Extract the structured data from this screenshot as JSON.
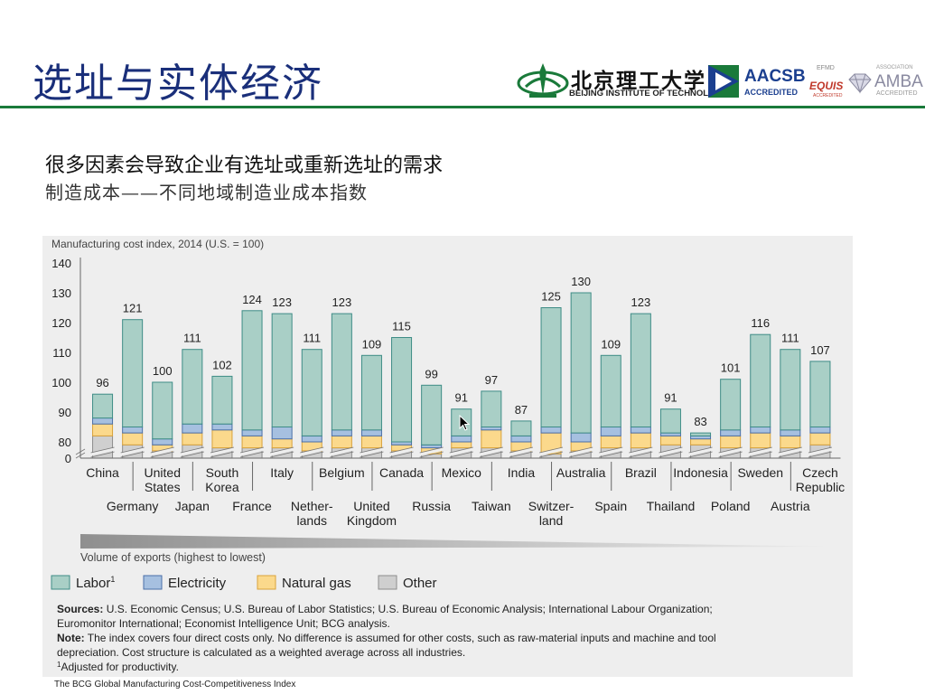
{
  "slide": {
    "title": "选址与实体经济",
    "heading": "很多因素会导致企业有选址或重新选址的需求",
    "subheading": "制造成本——不同地域制造业成本指数",
    "footer": "The BCG Global Manufacturing Cost-Competitiveness Index"
  },
  "logos": {
    "university_cn": "北京理工大学",
    "university_en": "BEIJING INSTITUTE OF TECHNOLOGY",
    "aacsb": "AACSB",
    "aacsb_sub": "ACCREDITED",
    "efmd": "EFMD",
    "equis": "EQUIS",
    "equis_sub": "ACCREDITED",
    "amba_assoc": "ASSOCIATION",
    "amba": "AMBA",
    "amba_sub": "ACCREDITED",
    "colors": {
      "bit_green": "#1a7a3a",
      "aacsb_blue": "#1b3f8f",
      "equis_red": "#c0392b"
    }
  },
  "chart_data": {
    "type": "bar",
    "stacked": true,
    "title": "Manufacturing cost index, 2014 (U.S. = 100)",
    "ylim": [
      0,
      140
    ],
    "yticks": [
      0,
      80,
      90,
      100,
      110,
      120,
      130,
      140
    ],
    "axis_break": true,
    "categories": [
      {
        "label": "China",
        "total": 96,
        "labor": 8,
        "electricity": 2,
        "gas": 4,
        "other": 82
      },
      {
        "label": "Germany",
        "total": 121,
        "labor": 36,
        "electricity": 2,
        "gas": 4,
        "other": 79
      },
      {
        "label": "United States",
        "total": 100,
        "labor": 19,
        "electricity": 2,
        "gas": 2,
        "other": 77
      },
      {
        "label": "Japan",
        "total": 111,
        "labor": 25,
        "electricity": 3,
        "gas": 4,
        "other": 79
      },
      {
        "label": "South Korea",
        "total": 102,
        "labor": 16,
        "electricity": 2,
        "gas": 6,
        "other": 78
      },
      {
        "label": "France",
        "total": 124,
        "labor": 40,
        "electricity": 2,
        "gas": 4,
        "other": 78
      },
      {
        "label": "Italy",
        "total": 123,
        "labor": 38,
        "electricity": 4,
        "gas": 3,
        "other": 78
      },
      {
        "label": "Nether-lands",
        "total": 111,
        "labor": 29,
        "electricity": 2,
        "gas": 3,
        "other": 77
      },
      {
        "label": "Belgium",
        "total": 123,
        "labor": 39,
        "electricity": 2,
        "gas": 4,
        "other": 78
      },
      {
        "label": "United Kingdom",
        "total": 109,
        "labor": 25,
        "electricity": 2,
        "gas": 4,
        "other": 78
      },
      {
        "label": "Canada",
        "total": 115,
        "labor": 35,
        "electricity": 1,
        "gas": 2,
        "other": 77
      },
      {
        "label": "Russia",
        "total": 99,
        "labor": 20,
        "electricity": 1,
        "gas": 2,
        "other": 76
      },
      {
        "label": "Mexico",
        "total": 91,
        "labor": 9,
        "electricity": 2,
        "gas": 2,
        "other": 78
      },
      {
        "label": "Taiwan",
        "total": 97,
        "labor": 12,
        "electricity": 1,
        "gas": 6,
        "other": 78
      },
      {
        "label": "India",
        "total": 87,
        "labor": 5,
        "electricity": 2,
        "gas": 3,
        "other": 77
      },
      {
        "label": "Switzer-land",
        "total": 125,
        "labor": 40,
        "electricity": 2,
        "gas": 7,
        "other": 76
      },
      {
        "label": "Australia",
        "total": 130,
        "labor": 47,
        "electricity": 3,
        "gas": 3,
        "other": 77
      },
      {
        "label": "Spain",
        "total": 109,
        "labor": 24,
        "electricity": 3,
        "gas": 4,
        "other": 78
      },
      {
        "label": "Brazil",
        "total": 123,
        "labor": 38,
        "electricity": 2,
        "gas": 5,
        "other": 78
      },
      {
        "label": "Thailand",
        "total": 91,
        "labor": 8,
        "electricity": 1,
        "gas": 3,
        "other": 79
      },
      {
        "label": "Indonesia",
        "total": 83,
        "labor": 1,
        "electricity": 1,
        "gas": 2,
        "other": 79
      },
      {
        "label": "Poland",
        "total": 101,
        "labor": 17,
        "electricity": 2,
        "gas": 4,
        "other": 78
      },
      {
        "label": "Sweden",
        "total": 116,
        "labor": 31,
        "electricity": 2,
        "gas": 5,
        "other": 78
      },
      {
        "label": "Austria",
        "total": 111,
        "labor": 27,
        "electricity": 2,
        "gas": 4,
        "other": 78
      },
      {
        "label": "Czech Republic",
        "total": 107,
        "labor": 22,
        "electricity": 2,
        "gas": 4,
        "other": 79
      }
    ],
    "xaxis_caption": "Volume of exports (highest to lowest)",
    "legend": [
      {
        "key": "labor",
        "label": "Labor",
        "sup": "1",
        "color": "#a9cfc6",
        "stroke": "#3e8c86"
      },
      {
        "key": "electricity",
        "label": "Electricity",
        "color": "#a6c0e0",
        "stroke": "#4b6fa8"
      },
      {
        "key": "gas",
        "label": "Natural gas",
        "color": "#fbd98c",
        "stroke": "#d9a23a"
      },
      {
        "key": "other",
        "label": "Other",
        "color": "#cfcfcf",
        "stroke": "#8c8c8c"
      }
    ],
    "notes": [
      {
        "bold": "Sources:",
        "text": " U.S. Economic Census; U.S. Bureau of Labor Statistics; U.S. Bureau of Economic Analysis; International Labour Organization;"
      },
      {
        "bold": "",
        "text": "Euromonitor International; Economist Intelligence Unit; BCG analysis."
      },
      {
        "bold": "Note:",
        "text": " The index covers four direct costs only. No difference is assumed for other costs, such as raw-material inputs and machine and tool"
      },
      {
        "bold": "",
        "text": "depreciation. Cost structure is calculated as a weighted average across all industries."
      },
      {
        "bold": "",
        "sup": "1",
        "text": "Adjusted for productivity."
      }
    ]
  }
}
